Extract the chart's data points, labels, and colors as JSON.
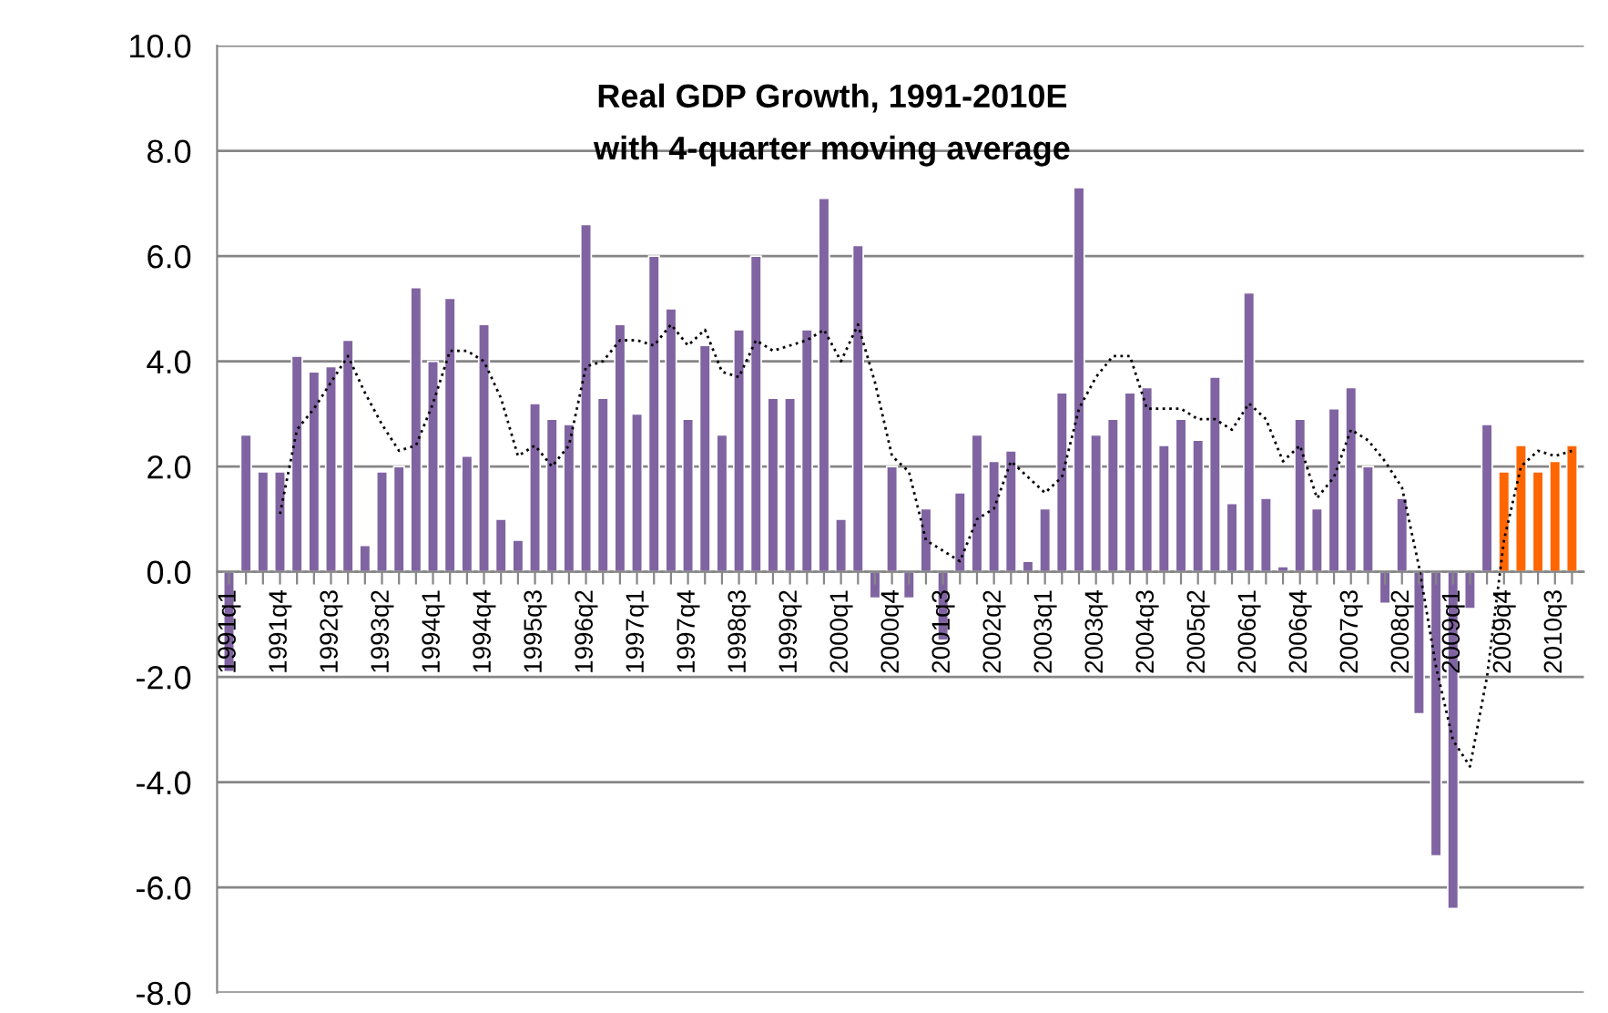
{
  "chart_data": {
    "type": "bar",
    "title": "Real GDP Growth, 1991-2010E",
    "subtitle": "with 4-quarter moving average",
    "categories": [
      "1991q1",
      null,
      null,
      "1991q4",
      null,
      null,
      "1992q3",
      null,
      null,
      "1993q2",
      null,
      null,
      "1994q1",
      null,
      null,
      "1994q4",
      null,
      null,
      "1995q3",
      null,
      null,
      "1996q2",
      null,
      null,
      "1997q1",
      null,
      null,
      "1997q4",
      null,
      null,
      "1998q3",
      null,
      null,
      "1999q2",
      null,
      null,
      "2000q1",
      null,
      null,
      "2000q4",
      null,
      null,
      "2001q3",
      null,
      null,
      "2002q2",
      null,
      null,
      "2003q1",
      null,
      null,
      "2003q4",
      null,
      null,
      "2004q3",
      null,
      null,
      "2005q2",
      null,
      null,
      "2006q1",
      null,
      null,
      "2006q4",
      null,
      null,
      "2007q3",
      null,
      null,
      "2008q2",
      null,
      null,
      "2009q1",
      null,
      null,
      "2009q4",
      null,
      null,
      "2010q3",
      null
    ],
    "series": [
      {
        "colors": [
          "#8064a2",
          "#8064a2",
          "#8064a2",
          "#8064a2",
          "#8064a2",
          "#8064a2",
          "#8064a2",
          "#8064a2",
          "#8064a2",
          "#8064a2",
          "#8064a2",
          "#8064a2",
          "#8064a2",
          "#8064a2",
          "#8064a2",
          "#8064a2",
          "#8064a2",
          "#8064a2",
          "#8064a2",
          "#8064a2",
          "#8064a2",
          "#8064a2",
          "#8064a2",
          "#8064a2",
          "#8064a2",
          "#8064a2",
          "#8064a2",
          "#8064a2",
          "#8064a2",
          "#8064a2",
          "#8064a2",
          "#8064a2",
          "#8064a2",
          "#8064a2",
          "#8064a2",
          "#8064a2",
          "#8064a2",
          "#8064a2",
          "#8064a2",
          "#8064a2",
          "#8064a2",
          "#8064a2",
          "#8064a2",
          "#8064a2",
          "#8064a2",
          "#8064a2",
          "#8064a2",
          "#8064a2",
          "#8064a2",
          "#8064a2",
          "#8064a2",
          "#8064a2",
          "#8064a2",
          "#8064a2",
          "#8064a2",
          "#8064a2",
          "#8064a2",
          "#8064a2",
          "#8064a2",
          "#8064a2",
          "#8064a2",
          "#8064a2",
          "#8064a2",
          "#8064a2",
          "#8064a2",
          "#8064a2",
          "#8064a2",
          "#8064a2",
          "#8064a2",
          "#8064a2",
          "#8064a2",
          "#8064a2",
          "#8064a2",
          "#8064a2",
          "#8064a2",
          "#ff6600",
          "#ff6600",
          "#ff6600",
          "#ff6600",
          "#ff6600"
        ],
        "values": [
          -1.9,
          2.6,
          1.9,
          1.9,
          4.1,
          3.8,
          3.9,
          4.4,
          0.5,
          1.9,
          2.0,
          5.4,
          4.0,
          5.2,
          2.2,
          4.7,
          1.0,
          0.6,
          3.2,
          2.9,
          2.8,
          6.6,
          3.3,
          4.7,
          3.0,
          6.0,
          5.0,
          2.9,
          4.3,
          2.6,
          4.6,
          6.0,
          3.3,
          3.3,
          4.6,
          7.1,
          1.0,
          6.2,
          -0.5,
          2.0,
          -0.5,
          1.2,
          -1.3,
          1.5,
          2.6,
          2.1,
          2.3,
          0.2,
          1.2,
          3.4,
          7.3,
          2.6,
          2.9,
          3.4,
          3.5,
          2.4,
          2.9,
          2.5,
          3.7,
          1.3,
          5.3,
          1.4,
          0.1,
          2.9,
          1.2,
          3.1,
          3.5,
          2.0,
          -0.6,
          1.4,
          -2.7,
          -5.4,
          -6.4,
          -0.7,
          2.8,
          1.9,
          2.4,
          1.9,
          2.1,
          2.4
        ]
      },
      {
        "type": "line",
        "color": "#000000",
        "line_style": "dotted",
        "values": [
          null,
          null,
          null,
          1.1,
          2.7,
          3.1,
          3.6,
          4.1,
          3.4,
          2.8,
          2.3,
          2.4,
          3.2,
          4.2,
          4.2,
          4.0,
          3.3,
          2.2,
          2.4,
          2.0,
          2.4,
          3.9,
          4.0,
          4.4,
          4.4,
          4.3,
          4.7,
          4.3,
          4.6,
          3.8,
          3.7,
          4.4,
          4.2,
          4.3,
          4.4,
          4.6,
          4.0,
          4.7,
          3.6,
          2.2,
          1.9,
          0.6,
          0.4,
          0.2,
          1.0,
          1.2,
          2.1,
          1.8,
          1.5,
          1.8,
          3.1,
          3.7,
          4.1,
          4.1,
          3.1,
          3.1,
          3.1,
          2.9,
          2.9,
          2.7,
          3.2,
          2.9,
          2.1,
          2.4,
          1.4,
          1.8,
          2.7,
          2.5,
          2.1,
          1.6,
          0.1,
          -1.8,
          -3.2,
          -3.7,
          -2.0,
          0.6,
          2.0,
          2.3,
          2.2,
          2.3
        ]
      }
    ],
    "ylim": [
      -8,
      10
    ],
    "yticks": [
      {
        "value": -8,
        "label": "-8.0"
      },
      {
        "value": -6,
        "label": "-6.0"
      },
      {
        "value": -4,
        "label": "-4.0"
      },
      {
        "value": -2,
        "label": "-2.0"
      },
      {
        "value": 0,
        "label": "0.0"
      },
      {
        "value": 2,
        "label": "2.0"
      },
      {
        "value": 4,
        "label": "4.0"
      },
      {
        "value": 6,
        "label": "6.0"
      },
      {
        "value": 8,
        "label": "8.0"
      },
      {
        "value": 10,
        "label": "10.0"
      }
    ],
    "grid": "y"
  }
}
